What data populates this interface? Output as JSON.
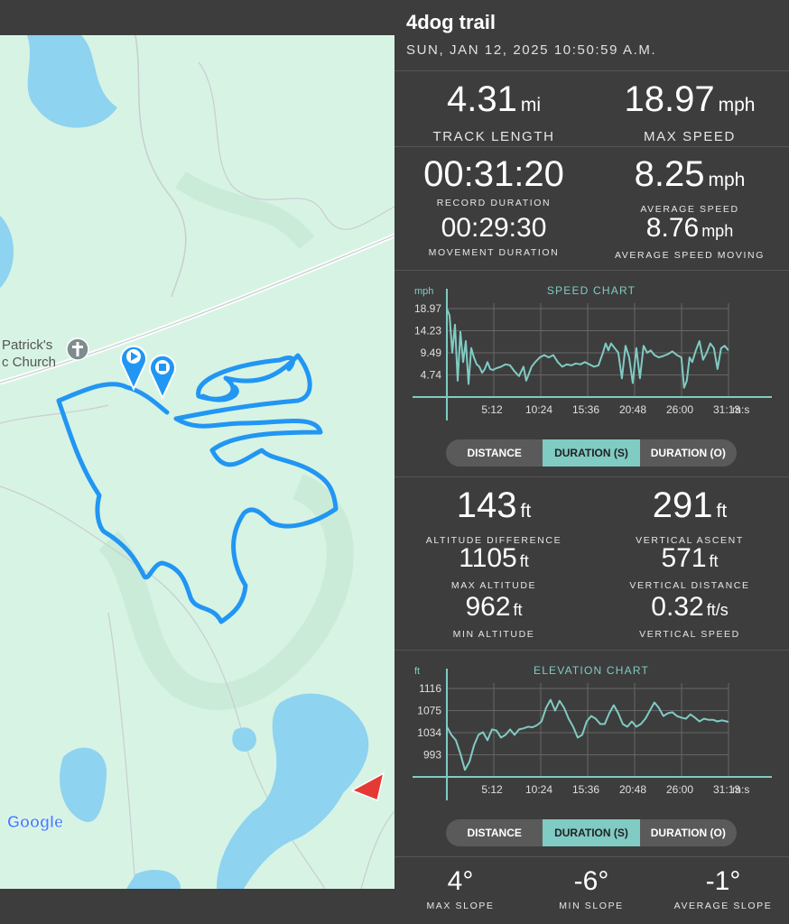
{
  "track": {
    "name": "4dog trail",
    "date": "SUN, JAN 12, 2025 10:50:59 A.M."
  },
  "stats_primary": [
    {
      "value": "4.31",
      "unit": "mi",
      "label": "TRACK LENGTH"
    },
    {
      "value": "18.97",
      "unit": "mph",
      "label": "MAX SPEED"
    }
  ],
  "stats_time": [
    {
      "value": "00:31:20",
      "unit": "",
      "label": "RECORD DURATION"
    },
    {
      "value": "8.25",
      "unit": "mph",
      "label": "AVERAGE SPEED"
    },
    {
      "value": "00:29:30",
      "unit": "",
      "label": "MOVEMENT DURATION"
    },
    {
      "value": "8.76",
      "unit": "mph",
      "label": "AVERAGE SPEED MOVING"
    }
  ],
  "stats_altitude": [
    {
      "value": "143",
      "unit": "ft",
      "label": "ALTITUDE DIFFERENCE"
    },
    {
      "value": "291",
      "unit": "ft",
      "label": "VERTICAL ASCENT"
    },
    {
      "value": "1105",
      "unit": "ft",
      "label": "MAX ALTITUDE"
    },
    {
      "value": "571",
      "unit": "ft",
      "label": "VERTICAL DISTANCE"
    },
    {
      "value": "962",
      "unit": "ft",
      "label": "MIN ALTITUDE"
    },
    {
      "value": "0.32",
      "unit": "ft/s",
      "label": "VERTICAL SPEED"
    }
  ],
  "stats_slope": [
    {
      "value": "4°",
      "label": "MAX SLOPE"
    },
    {
      "value": "-6°",
      "label": "MIN SLOPE"
    },
    {
      "value": "-1°",
      "label": "AVERAGE SLOPE"
    }
  ],
  "toggle_speed": {
    "options": [
      "DISTANCE",
      "DURATION (S)",
      "DURATION (O)"
    ],
    "selected": "DURATION (S)"
  },
  "toggle_elevation": {
    "options": [
      "DISTANCE",
      "DURATION (S)",
      "DURATION (O)"
    ],
    "selected": "DURATION (S)"
  },
  "map": {
    "place_label_line1": "Patrick's",
    "place_label_line2": "c Church",
    "attribution": "Google",
    "route_color": "#2196f3",
    "land_color": "#d7f3e4",
    "water_color": "#8ed3f0"
  },
  "chart_data": [
    {
      "type": "line",
      "title": "SPEED CHART",
      "ylabel": "mph",
      "xlabel": "m:s",
      "x_ticks": [
        "5:12",
        "10:24",
        "15:36",
        "20:48",
        "26:00",
        "31:13"
      ],
      "y_ticks": [
        "4.74",
        "9.49",
        "14.23",
        "18.97"
      ],
      "ylim": [
        0,
        18.97
      ],
      "xlim": [
        0,
        31.22
      ],
      "color": "#80cbc4",
      "x": [
        0,
        0.3,
        0.6,
        0.9,
        1.2,
        1.5,
        1.8,
        2.1,
        2.4,
        2.7,
        3.0,
        3.3,
        3.6,
        3.9,
        4.2,
        4.5,
        4.8,
        5.1,
        5.5,
        6.0,
        6.5,
        7.0,
        7.5,
        8.0,
        8.5,
        8.8,
        9.1,
        9.4,
        9.8,
        10.3,
        10.8,
        11.3,
        11.8,
        12.3,
        12.8,
        13.3,
        13.8,
        14.3,
        14.8,
        15.3,
        15.8,
        16.3,
        16.8,
        17.3,
        17.6,
        17.9,
        18.2,
        18.6,
        19.0,
        19.4,
        19.8,
        20.2,
        20.6,
        21.0,
        21.4,
        21.8,
        22.2,
        22.6,
        23.0,
        23.5,
        24.0,
        24.5,
        25.0,
        25.5,
        26.0,
        26.3,
        26.6,
        26.9,
        27.2,
        27.6,
        28.0,
        28.4,
        28.8,
        29.2,
        29.6,
        30.0,
        30.4,
        30.8,
        31.2
      ],
      "y": [
        18.97,
        17.5,
        9.5,
        15.5,
        3.5,
        14.0,
        7.5,
        12.0,
        2.8,
        10.5,
        8.5,
        7.0,
        6.5,
        5.2,
        6.0,
        7.5,
        6.0,
        5.8,
        6.2,
        6.5,
        7.0,
        6.8,
        5.5,
        4.5,
        6.5,
        3.5,
        5.0,
        6.5,
        7.5,
        8.5,
        9.0,
        8.5,
        9.0,
        7.5,
        6.5,
        7.0,
        6.8,
        7.2,
        7.0,
        7.5,
        7.0,
        6.5,
        6.8,
        9.5,
        11.5,
        10.0,
        11.5,
        10.5,
        9.5,
        4.0,
        11.0,
        8.5,
        3.0,
        10.5,
        4.0,
        11.0,
        9.5,
        10.0,
        9.0,
        8.5,
        8.8,
        9.2,
        9.8,
        9.0,
        8.5,
        2.0,
        3.5,
        8.5,
        7.5,
        10.0,
        12.0,
        8.0,
        9.5,
        11.5,
        10.5,
        6.0,
        10.5,
        11.0,
        10.0
      ]
    },
    {
      "type": "line",
      "title": "ELEVATION CHART",
      "ylabel": "ft",
      "xlabel": "m:s",
      "x_ticks": [
        "5:12",
        "10:24",
        "15:36",
        "20:48",
        "26:00",
        "31:13"
      ],
      "y_ticks": [
        "993",
        "1034",
        "1075",
        "1116"
      ],
      "ylim": [
        952,
        1116
      ],
      "xlim": [
        0,
        31.22
      ],
      "color": "#80cbc4",
      "x": [
        0,
        0.5,
        1.0,
        1.5,
        2.0,
        2.5,
        3.0,
        3.5,
        4.0,
        4.5,
        5.0,
        5.5,
        6.0,
        6.5,
        7.0,
        7.5,
        8.0,
        8.5,
        9.0,
        9.5,
        10.0,
        10.5,
        11.0,
        11.5,
        12.0,
        12.5,
        13.0,
        13.5,
        14.0,
        14.5,
        15.0,
        15.5,
        16.0,
        16.5,
        17.0,
        17.5,
        18.0,
        18.5,
        19.0,
        19.5,
        20.0,
        20.5,
        21.0,
        21.5,
        22.0,
        22.5,
        23.0,
        23.5,
        24.0,
        24.5,
        25.0,
        25.5,
        26.0,
        26.5,
        27.0,
        27.5,
        28.0,
        28.5,
        29.0,
        29.5,
        30.0,
        30.5,
        31.2
      ],
      "y": [
        1045,
        1030,
        1020,
        995,
        965,
        980,
        1010,
        1030,
        1035,
        1020,
        1040,
        1038,
        1025,
        1030,
        1040,
        1030,
        1040,
        1042,
        1045,
        1044,
        1048,
        1055,
        1080,
        1095,
        1075,
        1093,
        1080,
        1060,
        1045,
        1025,
        1030,
        1055,
        1065,
        1060,
        1050,
        1050,
        1070,
        1085,
        1070,
        1050,
        1045,
        1055,
        1045,
        1050,
        1060,
        1075,
        1090,
        1080,
        1065,
        1070,
        1072,
        1065,
        1062,
        1060,
        1068,
        1062,
        1055,
        1060,
        1058,
        1058,
        1055,
        1057,
        1054
      ]
    }
  ]
}
